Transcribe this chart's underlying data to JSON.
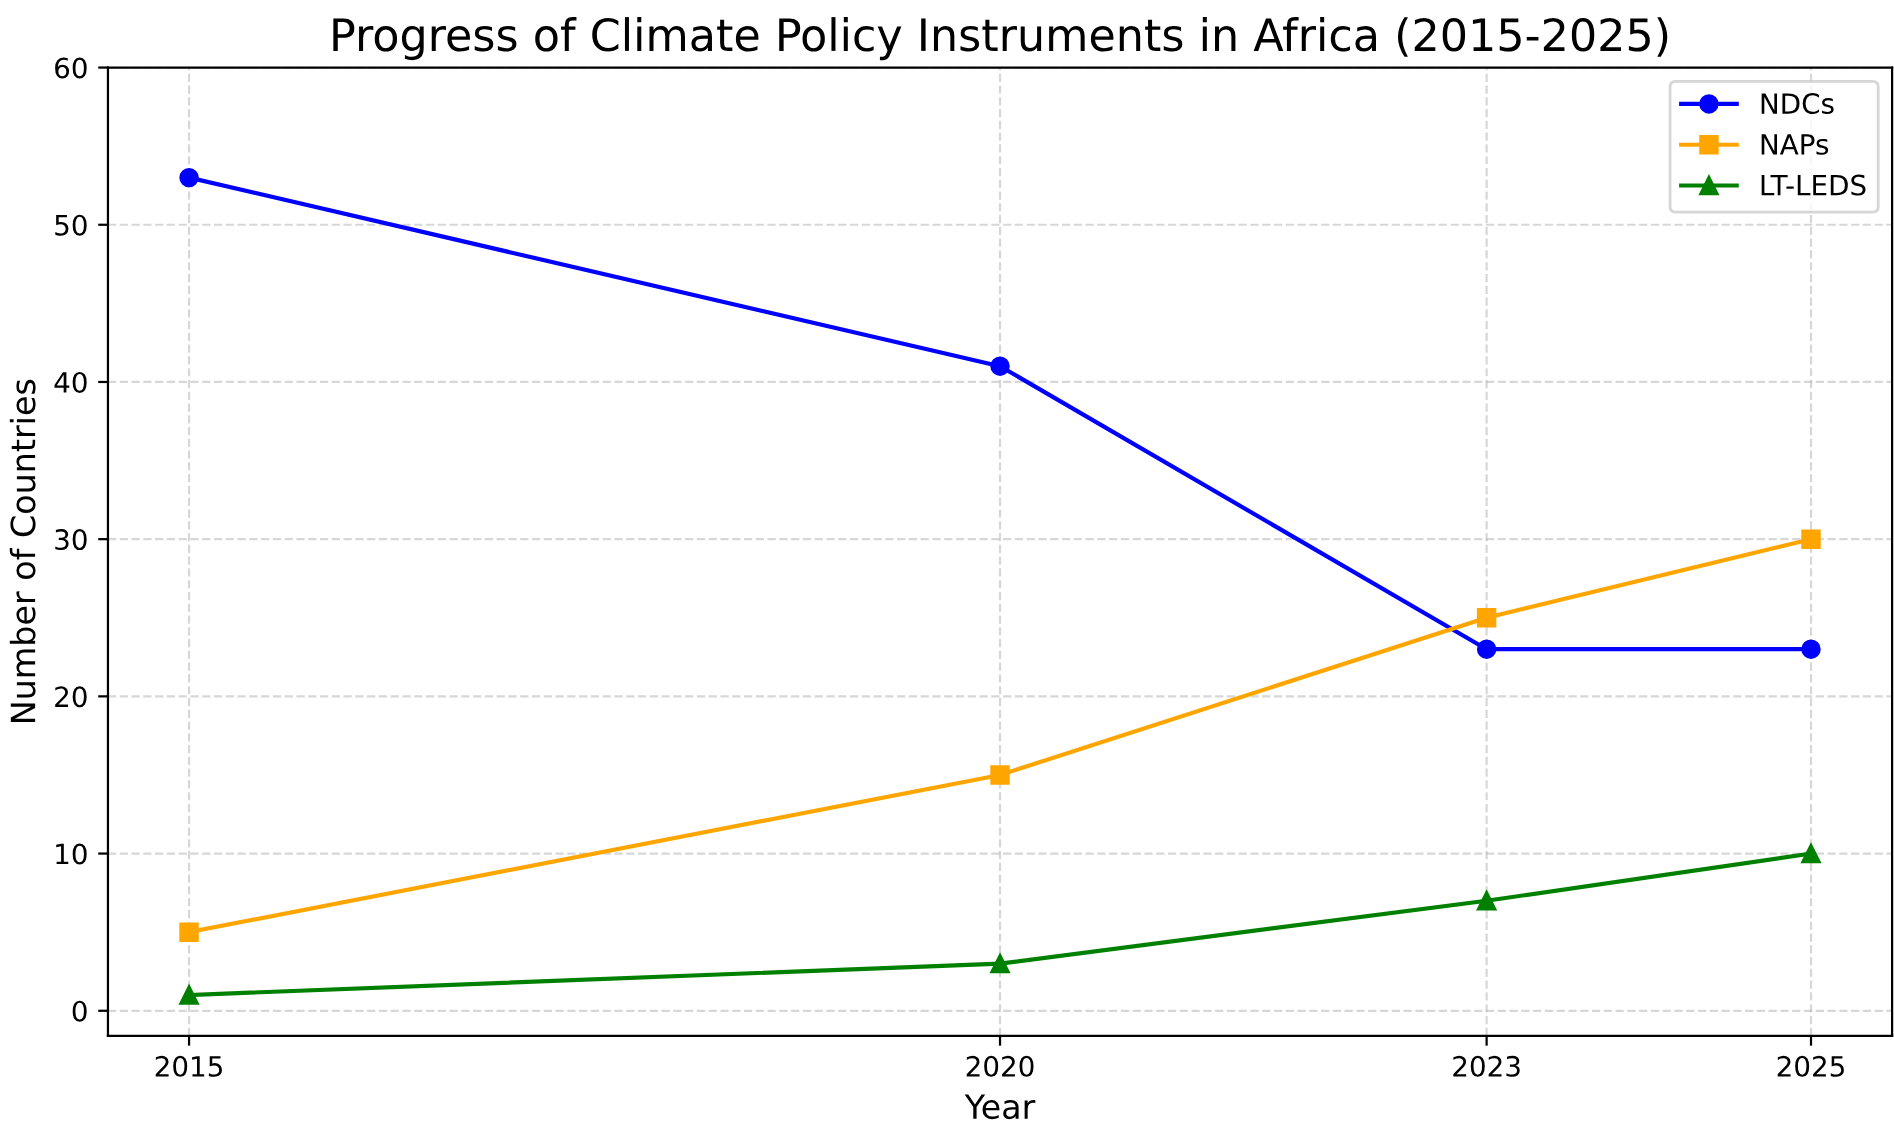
{
  "chart_data": {
    "type": "line",
    "title": "Progress of Climate Policy Instruments in Africa (2015-2025)",
    "xlabel": "Year",
    "ylabel": "Number of Countries",
    "x": [
      2015,
      2020,
      2023,
      2025
    ],
    "series": [
      {
        "name": "NDCs",
        "color": "#0000ff",
        "marker": "circle",
        "values": [
          53,
          41,
          23,
          23
        ]
      },
      {
        "name": "NAPs",
        "color": "#ffa500",
        "marker": "square",
        "values": [
          5,
          15,
          25,
          30
        ]
      },
      {
        "name": "LT-LEDS",
        "color": "#008000",
        "marker": "triangle",
        "values": [
          1,
          3,
          7,
          10
        ]
      }
    ],
    "xlim": [
      2014.5,
      2025.5
    ],
    "xticks": [
      2015,
      2020,
      2023,
      2025
    ],
    "ylim": [
      -1.6,
      60
    ],
    "yticks": [
      0,
      10,
      20,
      30,
      40,
      50,
      60
    ],
    "grid": true,
    "line_style": "solid",
    "legend": "top right"
  }
}
